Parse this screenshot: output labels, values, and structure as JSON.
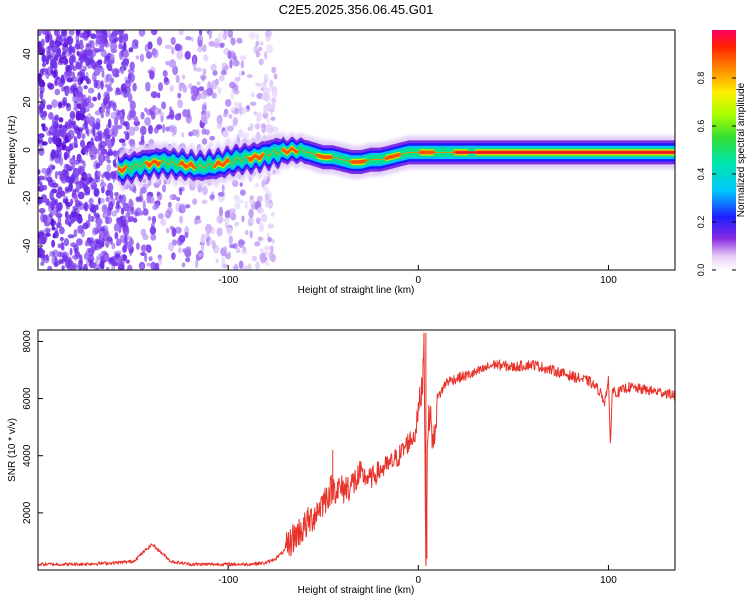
{
  "title": "C2E5.2025.356.06.45.G01",
  "chart_data": [
    {
      "type": "heatmap",
      "name": "spectrogram",
      "xlabel": "Height of straight line (km)",
      "ylabel": "Frequency (Hz)",
      "xlim": [
        -200,
        135
      ],
      "ylim": [
        -50,
        50
      ],
      "xticks": [
        -100,
        0,
        100
      ],
      "yticks": [
        -40,
        -20,
        0,
        20,
        40
      ],
      "colorbar": {
        "label": "Normalized spectral amplitude",
        "range": [
          0,
          1
        ],
        "ticks": [
          0.0,
          0.2,
          0.4,
          0.6,
          0.8
        ]
      },
      "ridge": {
        "x": [
          -155,
          -145,
          -135,
          -125,
          -115,
          -105,
          -95,
          -85,
          -75,
          -65,
          -58,
          -50,
          -45,
          -40,
          -35,
          -30,
          -25,
          -20,
          -15,
          -10,
          -5,
          0,
          5,
          10,
          20,
          40,
          60,
          80,
          100,
          120,
          135
        ],
        "y": [
          -8,
          -6,
          -5,
          -6,
          -7,
          -6,
          -4,
          -3,
          -1,
          0,
          -1,
          -3,
          -3,
          -4,
          -5,
          -5,
          -4,
          -4,
          -3,
          -2,
          -1,
          -1,
          -1,
          -1,
          -1,
          -1,
          -1,
          -1,
          -1,
          -1,
          -1
        ]
      },
      "noise_region_x": [
        -200,
        -75
      ]
    },
    {
      "type": "line",
      "name": "snr",
      "xlabel": "Height of straight line (km)",
      "ylabel": "SNR (10 * v/v)",
      "xlim": [
        -200,
        135
      ],
      "ylim": [
        0,
        8400
      ],
      "xticks": [
        -100,
        0,
        100
      ],
      "yticks": [
        2000,
        4000,
        6000,
        8000
      ],
      "color": "#e8332a",
      "series": [
        {
          "name": "SNR",
          "x": [
            -200,
            -180,
            -160,
            -150,
            -145,
            -140,
            -135,
            -130,
            -120,
            -110,
            -100,
            -90,
            -80,
            -75,
            -70,
            -65,
            -60,
            -55,
            -50,
            -45,
            -40,
            -35,
            -30,
            -25,
            -20,
            -15,
            -10,
            -5,
            -2,
            0,
            2,
            3,
            4,
            5,
            6,
            8,
            10,
            15,
            20,
            25,
            30,
            40,
            50,
            60,
            70,
            80,
            90,
            95,
            98,
            100,
            101,
            102,
            105,
            110,
            120,
            130,
            135
          ],
          "y": [
            200,
            200,
            250,
            300,
            600,
            900,
            600,
            300,
            200,
            200,
            200,
            200,
            250,
            400,
            700,
            1200,
            1500,
            1900,
            2400,
            2900,
            2800,
            3000,
            3300,
            3200,
            3500,
            3700,
            4000,
            4500,
            4700,
            5500,
            6400,
            8100,
            300,
            4800,
            5600,
            4300,
            6000,
            6600,
            6700,
            6800,
            6900,
            7200,
            7100,
            7200,
            7000,
            6800,
            6600,
            6300,
            5900,
            6600,
            4400,
            6300,
            6200,
            6400,
            6300,
            6200,
            6100
          ]
        }
      ]
    }
  ]
}
